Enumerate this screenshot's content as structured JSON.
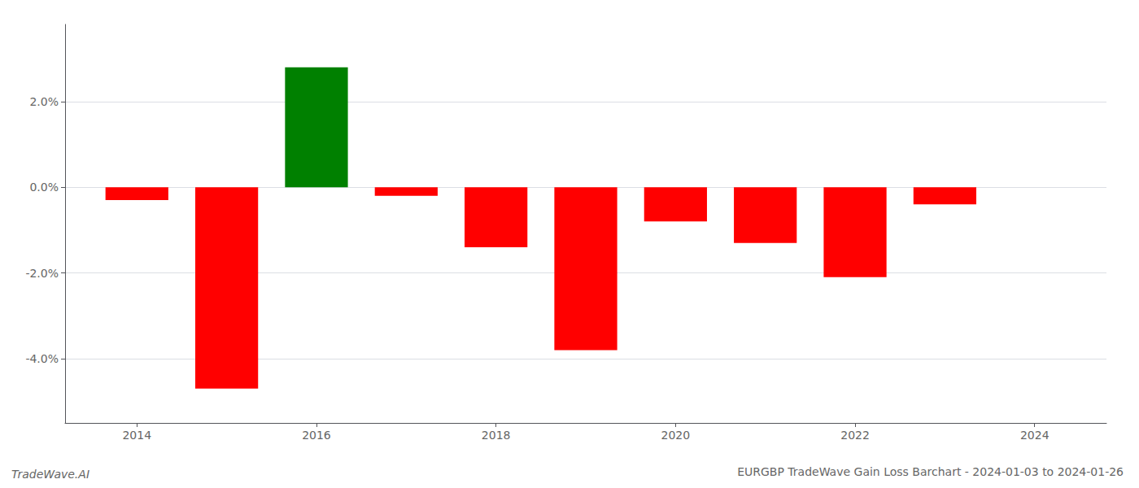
{
  "chart_data": {
    "type": "bar",
    "title": "EURGBP TradeWave Gain Loss Barchart - 2024-01-03 to 2024-01-26",
    "annotations": [
      "TradeWave.AI"
    ],
    "x": [
      2014,
      2015,
      2016,
      2017,
      2018,
      2019,
      2020,
      2021,
      2022,
      2023
    ],
    "values": [
      -0.003,
      -0.047,
      0.028,
      -0.002,
      -0.014,
      -0.038,
      -0.008,
      -0.013,
      -0.021,
      -0.004
    ],
    "colors": [
      "red",
      "red",
      "green",
      "red",
      "red",
      "red",
      "red",
      "red",
      "red",
      "red"
    ],
    "xlim": [
      2013.2,
      2024.8
    ],
    "xticks": [
      2014,
      2016,
      2018,
      2020,
      2022,
      2024
    ],
    "ylim": [
      -0.055,
      0.038
    ],
    "yticks": [
      {
        "value": -0.04,
        "label": "-4.0%"
      },
      {
        "value": -0.02,
        "label": "-2.0%"
      },
      {
        "value": 0.0,
        "label": "0.0%"
      },
      {
        "value": 0.02,
        "label": "2.0%"
      }
    ],
    "grid": true
  }
}
